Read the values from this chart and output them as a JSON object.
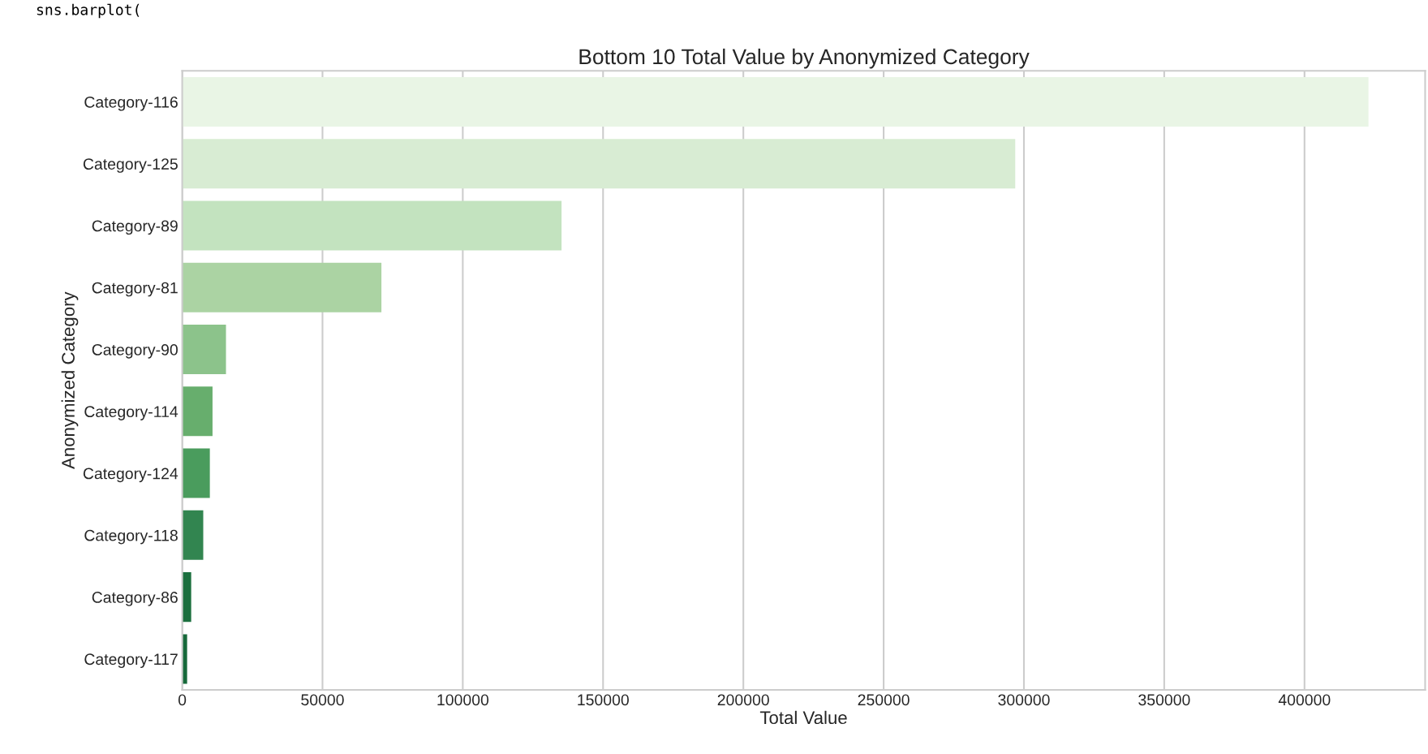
{
  "chart_data": {
    "type": "bar",
    "orientation": "horizontal",
    "title": "Bottom 10 Total Value by Anonymized Category",
    "xlabel": "Total Value",
    "ylabel": "Anonymized Category",
    "annotations": [
      "sns.barplot("
    ],
    "categories": [
      "Category-116",
      "Category-125",
      "Category-89",
      "Category-81",
      "Category-90",
      "Category-114",
      "Category-124",
      "Category-118",
      "Category-86",
      "Category-117"
    ],
    "values": [
      422800,
      296900,
      135200,
      71000,
      15600,
      10800,
      9850,
      7500,
      3200,
      1750
    ],
    "colors": [
      "#e9f5e5",
      "#d8ecd3",
      "#c3e3bf",
      "#abd3a3",
      "#8cc38b",
      "#67ae6d",
      "#4a9c5d",
      "#328550",
      "#1b6f3e",
      "#16693a"
    ],
    "xlim": [
      0,
      443000
    ],
    "xticks": [
      0,
      50000,
      100000,
      150000,
      200000,
      250000,
      300000,
      350000,
      400000
    ],
    "grid": "x"
  }
}
